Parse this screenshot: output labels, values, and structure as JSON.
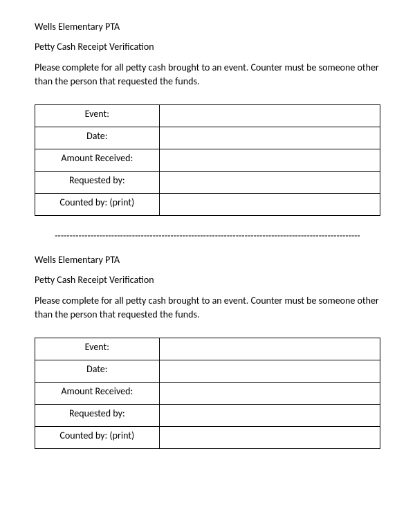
{
  "form1": {
    "org_name": "Wells Elementary PTA",
    "title": "Petty Cash Receipt Verification",
    "instructions": "Please complete for all petty cash brought to an event.  Counter must be someone other than the person that requested the funds.",
    "fields": {
      "event_label": "Event:",
      "date_label": "Date:",
      "amount_label": "Amount Received:",
      "requested_label": "Requested by:",
      "counted_label": "Counted by: (print)",
      "event_value": "",
      "date_value": "",
      "amount_value": "",
      "requested_value": "",
      "counted_value": ""
    }
  },
  "divider_text": "-------------------------------------------------------------------------------------------------------",
  "form2": {
    "org_name": "Wells Elementary PTA",
    "title": "Petty Cash Receipt Verification",
    "instructions": "Please complete for all petty cash brought to an event.  Counter must be someone other than the person that requested the funds.",
    "fields": {
      "event_label": "Event:",
      "date_label": "Date:",
      "amount_label": "Amount Received:",
      "requested_label": "Requested by:",
      "counted_label": "Counted by: (print)",
      "event_value": "",
      "date_value": "",
      "amount_value": "",
      "requested_value": "",
      "counted_value": ""
    }
  },
  "style": {
    "background_color": "#ffffff",
    "text_color": "#000000",
    "border_color": "#000000",
    "base_fontsize": 14,
    "font_family": "Calibri, Arial, sans-serif"
  }
}
